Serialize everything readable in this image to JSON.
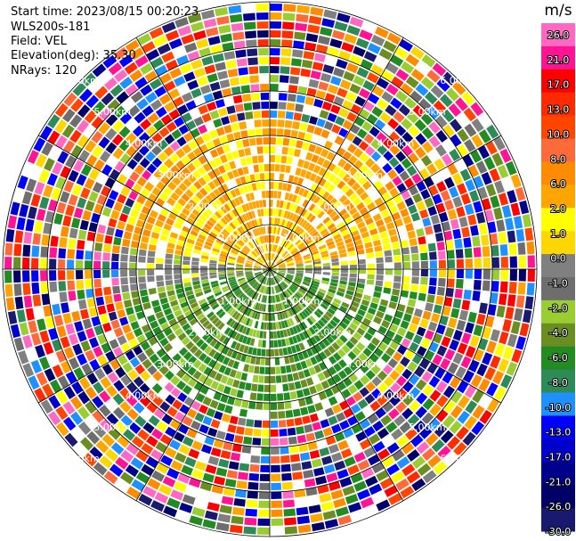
{
  "info": {
    "start_time": "Start time: 2023/08/15 00:20:23",
    "station": "WLS200s-181",
    "field": "Field: VEL",
    "elevation": "Elevation(deg): 35.30",
    "nrays": "NRays: 120"
  },
  "colorbar": {
    "unit": "m/s",
    "ticks": [
      "26.0",
      "21.0",
      "17.0",
      "13.0",
      "10.0",
      "8.0",
      "6.0",
      "2.0",
      "1.0",
      "0.0",
      "-1.0",
      "-2.0",
      "-4.0",
      "-6.0",
      "-8.0",
      "-10.0",
      "-13.0",
      "-17.0",
      "-21.0",
      "-26.0",
      "-30.0"
    ],
    "colors": [
      "#ff69c4",
      "#ff1493",
      "#ff0000",
      "#ff2a00",
      "#ff4500",
      "#ff6a3a",
      "#ff8c00",
      "#ffa500",
      "#ffff00",
      "#ffd700",
      "#808080",
      "#6e6e6e",
      "#9acd32",
      "#6b8e23",
      "#228b22",
      "#2e8b57",
      "#1e90ff",
      "#0000ff",
      "#0000cd",
      "#00008b",
      "#000066",
      "#191970"
    ]
  },
  "chart_data": {
    "type": "heatmap",
    "projection": "polar PPI",
    "field": "VEL",
    "units": "m/s",
    "nrays": 120,
    "range_rings_km": [
      1.0,
      2.0,
      3.0,
      4.0,
      5.0,
      6.0
    ],
    "ring_labels": [
      "1.00km",
      "2.00km",
      "3.00km",
      "4.00km",
      "5.00km",
      "6.00km"
    ],
    "value_range": [
      -30.0,
      26.0
    ],
    "pattern": "Inner ~3 km: positive velocities (yellow/orange, 2–8 m/s) in the northern half, negative (green, -2 to -8 m/s) in the southern half, near-zero grey along the east-west line; outer ranges: noisy multicolour returns."
  }
}
